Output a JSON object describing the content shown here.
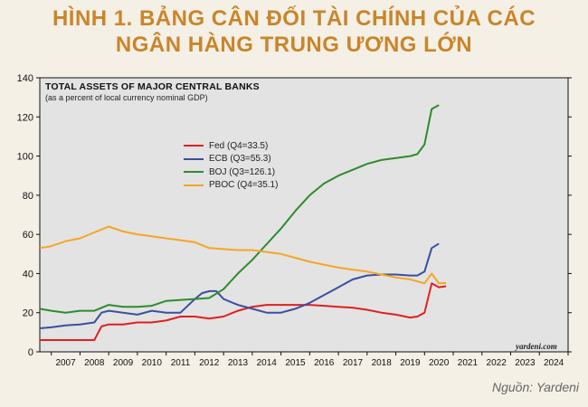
{
  "header": {
    "title_line1": "HÌNH 1. BẢNG CÂN ĐỐI TÀI CHÍNH CỦA CÁC",
    "title_line2": "NGÂN HÀNG TRUNG ƯƠNG LỚN"
  },
  "source": "Nguồn: Yardeni",
  "watermark": "yardeni.com",
  "colors": {
    "page_background": "#f4f0e6",
    "title": "#c9852a",
    "plot_background": "#e3e3e3",
    "Fed": "#e02020",
    "ECB": "#3a4fa0",
    "BOJ": "#2e8b2e",
    "PBOC": "#f5a623"
  },
  "chart_data": {
    "type": "line",
    "title": "TOTAL ASSETS OF MAJOR CENTRAL BANKS",
    "subtitle": "(as a percent of local currency nominal GDP)",
    "ylim": [
      0,
      140
    ],
    "yticks": [
      0,
      20,
      40,
      60,
      80,
      100,
      120,
      140
    ],
    "xlim": [
      2006.6,
      2025.0
    ],
    "xtick_labels": [
      "2007",
      "2008",
      "2009",
      "2010",
      "2011",
      "2012",
      "2013",
      "2014",
      "2015",
      "2016",
      "2017",
      "2018",
      "2019",
      "2020",
      "2021",
      "2022",
      "2023",
      "2024"
    ],
    "grid": false,
    "legend_position": "upper-left",
    "series": [
      {
        "name": "Fed",
        "legend": "Fed (Q4=33.5)",
        "color": "#e02020",
        "x": [
          2006.6,
          2007.5,
          2008.5,
          2008.75,
          2009.0,
          2009.5,
          2010.0,
          2010.5,
          2011.0,
          2011.5,
          2012.0,
          2012.5,
          2013.0,
          2013.5,
          2014.0,
          2014.5,
          2015.0,
          2015.5,
          2016.0,
          2016.5,
          2017.0,
          2017.5,
          2018.0,
          2018.5,
          2019.0,
          2019.5,
          2019.75,
          2020.0,
          2020.25,
          2020.5,
          2020.75
        ],
        "y": [
          6,
          6,
          6,
          13,
          14,
          14,
          15,
          15,
          16,
          18,
          18,
          17,
          18,
          21,
          23,
          24,
          24,
          24,
          24,
          23.5,
          23,
          22.5,
          21.5,
          20,
          19,
          17.5,
          18,
          20,
          35,
          33,
          33.5
        ]
      },
      {
        "name": "ECB",
        "legend": "ECB (Q3=55.3)",
        "color": "#3a4fa0",
        "x": [
          2006.6,
          2007.0,
          2007.5,
          2008.0,
          2008.5,
          2008.75,
          2009.0,
          2009.5,
          2010.0,
          2010.5,
          2011.0,
          2011.5,
          2012.0,
          2012.25,
          2012.5,
          2012.75,
          2013.0,
          2013.5,
          2014.0,
          2014.5,
          2015.0,
          2015.5,
          2016.0,
          2016.5,
          2017.0,
          2017.5,
          2018.0,
          2018.5,
          2019.0,
          2019.5,
          2019.75,
          2020.0,
          2020.25,
          2020.5
        ],
        "y": [
          12,
          12.5,
          13.5,
          14,
          15,
          20,
          21,
          20,
          19,
          21,
          20,
          20,
          27,
          30,
          31,
          31,
          27,
          24,
          22,
          20,
          20,
          22,
          25,
          29,
          33,
          37,
          39,
          39.5,
          39.5,
          39,
          39,
          41,
          53,
          55.3
        ]
      },
      {
        "name": "BOJ",
        "legend": "BOJ (Q3=126.1)",
        "color": "#2e8b2e",
        "x": [
          2006.6,
          2007.0,
          2007.5,
          2008.0,
          2008.5,
          2009.0,
          2009.5,
          2010.0,
          2010.5,
          2011.0,
          2011.5,
          2012.0,
          2012.5,
          2013.0,
          2013.5,
          2014.0,
          2014.5,
          2015.0,
          2015.5,
          2016.0,
          2016.5,
          2017.0,
          2017.5,
          2018.0,
          2018.5,
          2019.0,
          2019.5,
          2019.75,
          2020.0,
          2020.25,
          2020.5
        ],
        "y": [
          22,
          21,
          20,
          21,
          21,
          24,
          23,
          23,
          23.5,
          26,
          26.5,
          27,
          27.5,
          32,
          40,
          47,
          55,
          63,
          72,
          80,
          86,
          90,
          93,
          96,
          98,
          99,
          100,
          101,
          106,
          124,
          126.1
        ]
      },
      {
        "name": "PBOC",
        "legend": "PBOC (Q4=35.1)",
        "color": "#f5a623",
        "x": [
          2006.6,
          2007.0,
          2007.5,
          2008.0,
          2008.5,
          2009.0,
          2009.5,
          2010.0,
          2010.5,
          2011.0,
          2011.5,
          2012.0,
          2012.5,
          2013.0,
          2013.5,
          2014.0,
          2014.5,
          2015.0,
          2015.5,
          2016.0,
          2016.5,
          2017.0,
          2017.5,
          2018.0,
          2018.5,
          2019.0,
          2019.5,
          2019.75,
          2020.0,
          2020.25,
          2020.5,
          2020.75
        ],
        "y": [
          53,
          54,
          56.5,
          58,
          61,
          64,
          61.5,
          60,
          59,
          58,
          57,
          56,
          53,
          52.5,
          52,
          52,
          51,
          50,
          48,
          46,
          44.5,
          43,
          42,
          41,
          39.5,
          38,
          37,
          36,
          35,
          40,
          35,
          35.1
        ]
      }
    ]
  }
}
